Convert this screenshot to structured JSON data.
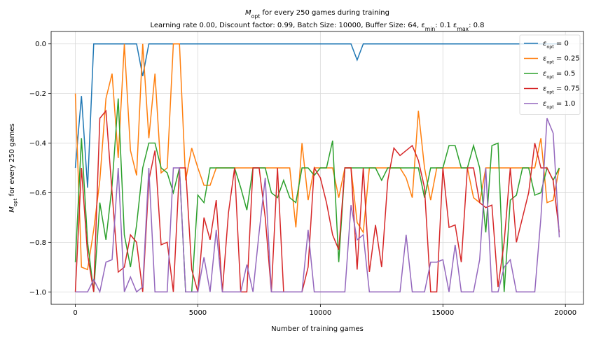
{
  "chart_data": {
    "type": "line",
    "title": [
      {
        "text": "M"
      },
      {
        "sub": "opt"
      },
      {
        "text": " for every 250 games during training"
      }
    ],
    "subtitle": [
      {
        "text": "Learning rate 0.00, Discount factor: 0.99, Batch Size: 10000, Buffer Size: 64, ε"
      },
      {
        "sub": "min"
      },
      {
        "text": ": 0.1 ε"
      },
      {
        "sub": "max"
      },
      {
        "text": ": 0.8"
      }
    ],
    "xlabel": "Number of training games",
    "ylabel": [
      {
        "text": "M"
      },
      {
        "sub": "opt"
      },
      {
        "text": " for every 250 games"
      }
    ],
    "x": [
      0,
      250,
      500,
      750,
      1000,
      1250,
      1500,
      1750,
      2000,
      2250,
      2500,
      2750,
      3000,
      3250,
      3500,
      3750,
      4000,
      4250,
      4500,
      4750,
      5000,
      5250,
      5500,
      5750,
      6000,
      6250,
      6500,
      6750,
      7000,
      7250,
      7500,
      7750,
      8000,
      8250,
      8500,
      8750,
      9000,
      9250,
      9500,
      9750,
      10000,
      10250,
      10500,
      10750,
      11000,
      11250,
      11500,
      11750,
      12000,
      12250,
      12500,
      12750,
      13000,
      13250,
      13500,
      13750,
      14000,
      14250,
      14500,
      14750,
      15000,
      15250,
      15500,
      15750,
      16000,
      16250,
      16500,
      16750,
      17000,
      17250,
      17500,
      17750,
      18000,
      18250,
      18500,
      18750,
      19000,
      19250,
      19500,
      19750
    ],
    "xlim": [
      -987.5,
      20737.5
    ],
    "xticks": [
      0,
      5000,
      10000,
      15000,
      20000
    ],
    "ylim": [
      -1.05,
      0.05
    ],
    "yticks": [
      {
        "value": -1.0,
        "label": "−1.0"
      },
      {
        "value": -0.8,
        "label": "−0.8"
      },
      {
        "value": -0.6,
        "label": "−0.6"
      },
      {
        "value": -0.4,
        "label": "−0.4"
      },
      {
        "value": -0.2,
        "label": "−0.2"
      },
      {
        "value": 0.0,
        "label": "0.0"
      }
    ],
    "grid": true,
    "legend": "upper right",
    "series": [
      {
        "name": [
          {
            "text": "ε"
          },
          {
            "sub": "opt"
          },
          {
            "text": " = 0"
          }
        ],
        "color": "#1f77b4",
        "values": [
          -0.5,
          -0.21,
          -0.58,
          0,
          0,
          0,
          0,
          0,
          0,
          0,
          0,
          -0.13,
          0,
          0,
          0,
          0,
          0,
          0,
          0,
          0,
          0,
          0,
          0,
          0,
          0,
          0,
          0,
          0,
          0,
          0,
          0,
          0,
          0,
          0,
          0,
          0,
          0,
          0,
          0,
          0,
          0,
          0,
          0,
          0,
          0,
          0,
          -0.065,
          0,
          0,
          0,
          0,
          0,
          0,
          0,
          0,
          0,
          0,
          0,
          0,
          0,
          0,
          0,
          0,
          0,
          0,
          0,
          0,
          0,
          0,
          0,
          0,
          0,
          0,
          0,
          0,
          0,
          0,
          0,
          0,
          0
        ]
      },
      {
        "name": [
          {
            "text": "ε"
          },
          {
            "sub": "opt"
          },
          {
            "text": " = 0.25"
          }
        ],
        "color": "#ff7f0e",
        "values": [
          -0.2,
          -0.9,
          -0.91,
          -0.75,
          -0.55,
          -0.22,
          -0.12,
          -0.46,
          0,
          -0.43,
          -0.53,
          0,
          -0.38,
          -0.12,
          -0.52,
          -0.5,
          0,
          0,
          -0.55,
          -0.42,
          -0.5,
          -0.57,
          -0.57,
          -0.5,
          -0.5,
          -0.5,
          -0.5,
          -0.5,
          -0.5,
          -0.5,
          -0.5,
          -0.5,
          -0.5,
          -0.5,
          -0.5,
          -0.5,
          -0.74,
          -0.4,
          -0.63,
          -0.5,
          -0.5,
          -0.5,
          -0.5,
          -0.62,
          -0.5,
          -0.5,
          -0.72,
          -0.76,
          -0.5,
          -0.5,
          -0.5,
          -0.5,
          -0.5,
          -0.5,
          -0.54,
          -0.62,
          -0.27,
          -0.5,
          -0.63,
          -0.5,
          -0.5,
          -0.5,
          -0.5,
          -0.5,
          -0.5,
          -0.62,
          -0.64,
          -0.5,
          -0.5,
          -0.5,
          -0.5,
          -0.5,
          -0.5,
          -0.5,
          -0.5,
          -0.5,
          -0.38,
          -0.64,
          -0.63,
          -0.5
        ]
      },
      {
        "name": [
          {
            "text": "ε"
          },
          {
            "sub": "opt"
          },
          {
            "text": " = 0.5"
          }
        ],
        "color": "#2ca02c",
        "values": [
          -0.88,
          -0.38,
          -0.8,
          -1.0,
          -0.64,
          -0.79,
          -0.57,
          -0.22,
          -0.77,
          -0.9,
          -0.73,
          -0.5,
          -0.4,
          -0.4,
          -0.5,
          -0.52,
          -0.6,
          -0.5,
          -1.0,
          -1.0,
          -0.61,
          -0.64,
          -0.5,
          -0.5,
          -0.5,
          -0.5,
          -0.5,
          -0.58,
          -0.67,
          -0.5,
          -0.5,
          -0.5,
          -0.6,
          -0.62,
          -0.55,
          -0.62,
          -0.64,
          -0.5,
          -0.5,
          -0.53,
          -0.5,
          -0.5,
          -0.39,
          -0.88,
          -0.5,
          -0.5,
          -0.5,
          -0.5,
          -0.5,
          -0.5,
          -0.55,
          -0.5,
          -0.5,
          -0.5,
          -0.5,
          -0.5,
          -0.5,
          -0.62,
          -0.5,
          -0.5,
          -0.5,
          -0.41,
          -0.41,
          -0.5,
          -0.5,
          -0.41,
          -0.5,
          -0.76,
          -0.41,
          -0.4,
          -1.0,
          -0.63,
          -0.61,
          -0.5,
          -0.5,
          -0.61,
          -0.6,
          -0.5,
          -0.55,
          -0.5
        ]
      },
      {
        "name": [
          {
            "text": "ε"
          },
          {
            "sub": "opt"
          },
          {
            "text": " = 0.75"
          }
        ],
        "color": "#d62728",
        "values": [
          -1.0,
          -0.5,
          -0.85,
          -1.0,
          -0.3,
          -0.27,
          -0.6,
          -0.92,
          -0.9,
          -0.77,
          -0.8,
          -1.0,
          -0.55,
          -0.43,
          -0.81,
          -0.8,
          -1.0,
          -0.5,
          -0.5,
          -0.91,
          -1.0,
          -0.7,
          -0.79,
          -0.63,
          -1.0,
          -0.68,
          -0.5,
          -1.0,
          -1.0,
          -0.5,
          -0.5,
          -0.7,
          -1.0,
          -0.5,
          -1.0,
          -1.0,
          -1.0,
          -1.0,
          -0.9,
          -0.5,
          -0.54,
          -0.64,
          -0.77,
          -0.83,
          -0.5,
          -0.5,
          -0.91,
          -0.5,
          -0.92,
          -0.73,
          -0.9,
          -0.55,
          -0.42,
          -0.45,
          -0.43,
          -0.41,
          -0.47,
          -0.58,
          -1.0,
          -1.0,
          -0.5,
          -0.74,
          -0.73,
          -0.88,
          -0.5,
          -0.5,
          -0.64,
          -0.66,
          -0.65,
          -0.98,
          -0.8,
          -0.5,
          -0.8,
          -0.7,
          -0.6,
          -0.4,
          -0.5,
          -0.5,
          -0.55,
          -0.76
        ]
      },
      {
        "name": [
          {
            "text": "ε"
          },
          {
            "sub": "opt"
          },
          {
            "text": " = 1.0"
          }
        ],
        "color": "#9467bd",
        "values": [
          -1.0,
          -1.0,
          -1.0,
          -0.95,
          -1.0,
          -0.88,
          -0.87,
          -0.5,
          -1.0,
          -0.94,
          -1.0,
          -0.98,
          -0.5,
          -1.0,
          -1.0,
          -1.0,
          -0.5,
          -0.5,
          -1.0,
          -1.0,
          -1.0,
          -0.86,
          -1.0,
          -0.75,
          -1.0,
          -1.0,
          -1.0,
          -1.0,
          -0.89,
          -1.0,
          -0.76,
          -0.54,
          -1.0,
          -1.0,
          -1.0,
          -1.0,
          -1.0,
          -1.0,
          -0.75,
          -1.0,
          -1.0,
          -1.0,
          -1.0,
          -1.0,
          -1.0,
          -0.65,
          -0.79,
          -0.77,
          -1.0,
          -1.0,
          -1.0,
          -1.0,
          -1.0,
          -1.0,
          -0.77,
          -1.0,
          -1.0,
          -1.0,
          -0.88,
          -0.88,
          -0.87,
          -1.0,
          -0.81,
          -1.0,
          -1.0,
          -1.0,
          -0.87,
          -0.5,
          -1.0,
          -1.0,
          -0.9,
          -0.87,
          -1.0,
          -1.0,
          -1.0,
          -1.0,
          -0.7,
          -0.3,
          -0.36,
          -0.78
        ]
      }
    ]
  }
}
